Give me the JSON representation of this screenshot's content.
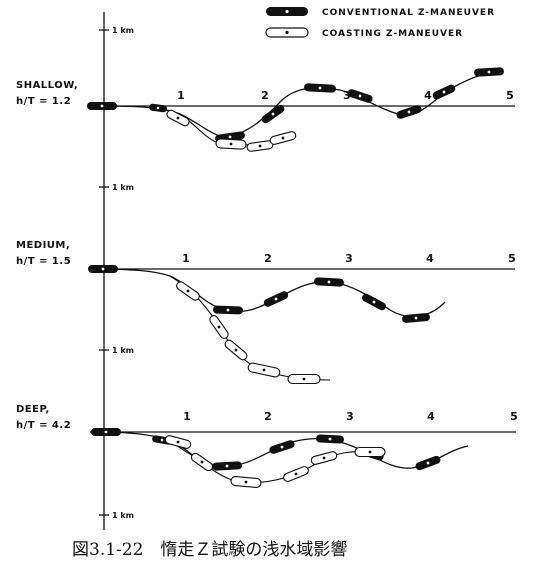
{
  "legend": {
    "conventional": "CONVENTIONAL Z-MANEUVER",
    "coasting": "COASTING Z-MANEUVER"
  },
  "scale": {
    "km_label": "1 km"
  },
  "panels": [
    {
      "depth": "SHALLOW,",
      "ratio": "h/T = 1.2",
      "ticks": [
        "1",
        "2",
        "3",
        "4",
        "5"
      ]
    },
    {
      "depth": "MEDIUM,",
      "ratio": "h/T = 1.5",
      "ticks": [
        "1",
        "2",
        "3",
        "4",
        "5"
      ]
    },
    {
      "depth": "DEEP,",
      "ratio": "h/T = 4.2",
      "ticks": [
        "1",
        "2",
        "3",
        "4",
        "5"
      ]
    }
  ],
  "caption": "図3.1-22　惰走Ｚ試験の浅水域影響"
}
